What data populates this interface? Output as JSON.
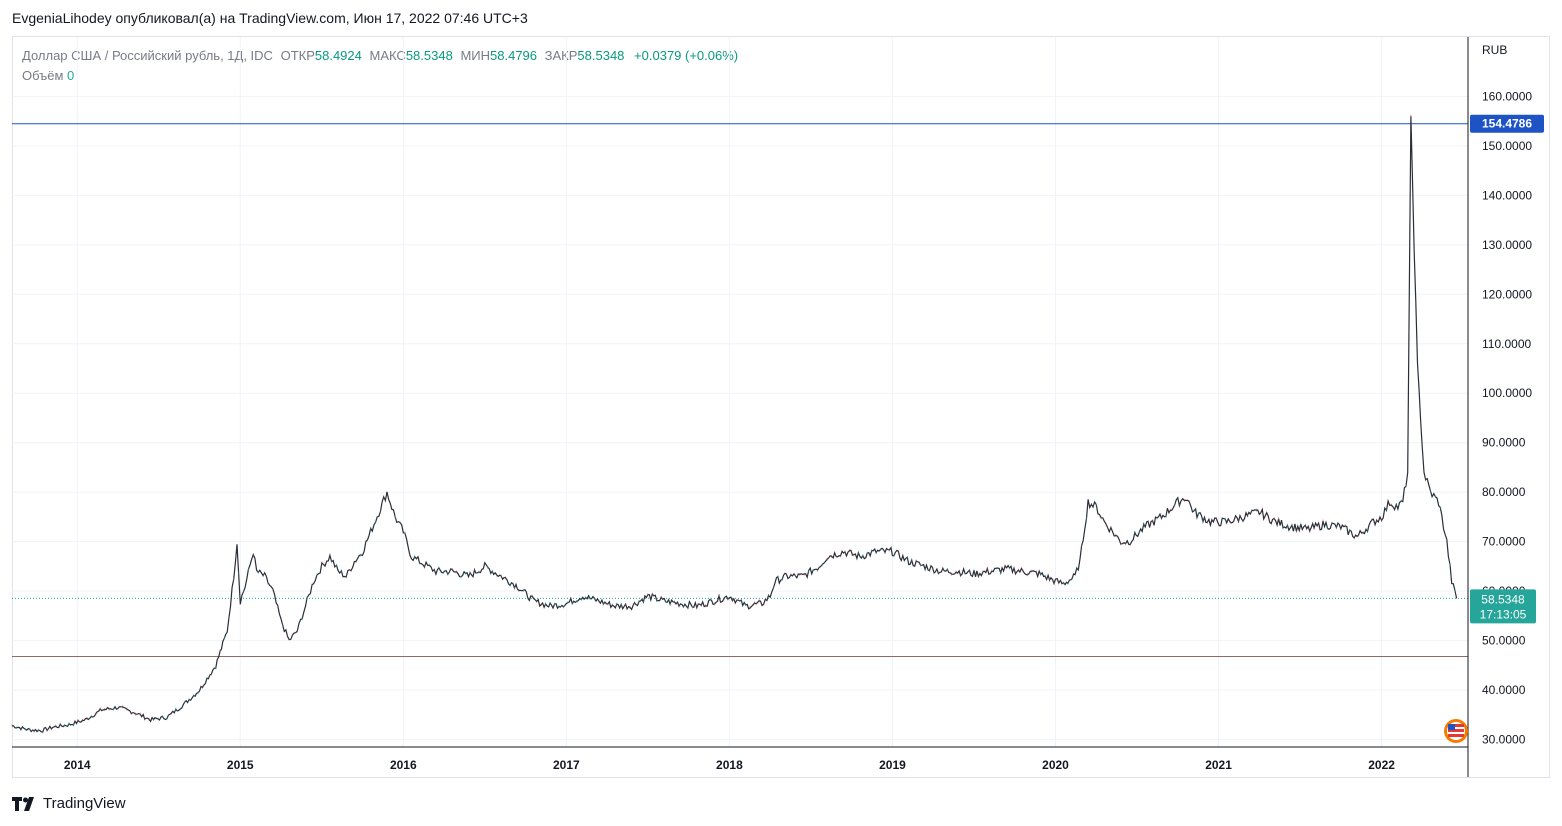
{
  "publisher_line": "EvgeniaLihodey опубликовал(а) на TradingView.com, Июн 17, 2022 07:46 UTC+3",
  "legend": {
    "symbol": "Доллар США / Российский рубль, 1Д, IDC",
    "open_label": "ОТКР",
    "open": "58.4924",
    "high_label": "МАКС",
    "high": "58.5348",
    "low_label": "МИН",
    "low": "58.4796",
    "close_label": "ЗАКР",
    "close": "58.5348",
    "change": "+0.0379 (+0.06%)",
    "volume_label": "Объём",
    "volume": "0"
  },
  "footer": {
    "brand": "TradingView"
  },
  "colors": {
    "line": "#131722",
    "up": "#26a69a",
    "down": "#ef5350",
    "hline": "#2962ff",
    "hline_low": "#b2b5be",
    "grid": "#f0f3fa",
    "price_badge": "#26a69a",
    "max_badge": "#1e53c6"
  },
  "chart_data": {
    "type": "line",
    "x_unit": "year",
    "x_ticks": [
      {
        "label": "2014",
        "x": 2014.0
      },
      {
        "label": "2015",
        "x": 2015.0
      },
      {
        "label": "2016",
        "x": 2016.0
      },
      {
        "label": "2017",
        "x": 2017.0
      },
      {
        "label": "2018",
        "x": 2018.0
      },
      {
        "label": "2019",
        "x": 2019.0
      },
      {
        "label": "2020",
        "x": 2020.0
      },
      {
        "label": "2021",
        "x": 2021.0
      },
      {
        "label": "2022",
        "x": 2022.0
      }
    ],
    "xlim": [
      2013.6,
      2022.53
    ],
    "ylim": [
      28.5,
      172
    ],
    "y_axis_label": "RUB",
    "y_ticks": [
      30,
      40,
      50,
      60,
      70,
      80,
      90,
      100,
      110,
      120,
      130,
      140,
      150,
      160
    ],
    "y_tick_labels": [
      "30.0000",
      "40.0000",
      "50.0000",
      "60.0000",
      "70.0000",
      "80.0000",
      "90.0000",
      "100.0000",
      "110.0000",
      "120.0000",
      "130.0000",
      "140.0000",
      "150.0000",
      "160.0000"
    ],
    "grid": true,
    "horizontal_lines": [
      {
        "y": 154.4786,
        "label": "154.4786",
        "style": "solid"
      },
      {
        "y": 46.8,
        "style": "solid-thin"
      }
    ],
    "last_price": {
      "y": 58.5348,
      "label": "58.5348",
      "countdown": "17:13:05"
    },
    "series": [
      {
        "x": [
          2013.6,
          2013.7,
          2013.78,
          2013.85,
          2013.95,
          2014.05,
          2014.15,
          2014.25,
          2014.35,
          2014.45,
          2014.55,
          2014.65,
          2014.75,
          2014.85,
          2014.92,
          2014.96,
          2014.98,
          2015.0,
          2015.03,
          2015.08,
          2015.1,
          2015.15,
          2015.2,
          2015.25,
          2015.3,
          2015.35,
          2015.4,
          2015.45,
          2015.5,
          2015.55,
          2015.6,
          2015.65,
          2015.7,
          2015.75,
          2015.8,
          2015.85,
          2015.9,
          2015.95,
          2016.0,
          2016.05,
          2016.1,
          2016.15,
          2016.2,
          2016.3,
          2016.4,
          2016.5,
          2016.6,
          2016.7,
          2016.8,
          2016.9,
          2017.0,
          2017.1,
          2017.2,
          2017.3,
          2017.4,
          2017.5,
          2017.6,
          2017.7,
          2017.8,
          2017.9,
          2018.0,
          2018.1,
          2018.2,
          2018.25,
          2018.28,
          2018.35,
          2018.45,
          2018.55,
          2018.6,
          2018.7,
          2018.8,
          2018.9,
          2019.0,
          2019.1,
          2019.2,
          2019.3,
          2019.4,
          2019.5,
          2019.6,
          2019.7,
          2019.8,
          2019.9,
          2020.0,
          2020.05,
          2020.12,
          2020.15,
          2020.2,
          2020.25,
          2020.3,
          2020.35,
          2020.4,
          2020.45,
          2020.55,
          2020.65,
          2020.75,
          2020.8,
          2020.85,
          2020.95,
          2021.05,
          2021.15,
          2021.25,
          2021.35,
          2021.45,
          2021.55,
          2021.65,
          2021.75,
          2021.85,
          2021.95,
          2022.0,
          2022.05,
          2022.1,
          2022.13,
          2022.16,
          2022.18,
          2022.2,
          2022.22,
          2022.24,
          2022.26,
          2022.3,
          2022.35,
          2022.4,
          2022.43,
          2022.46
        ],
        "values": [
          32.8,
          32.0,
          31.8,
          32.5,
          33.0,
          34.0,
          36.0,
          36.5,
          35.5,
          34.0,
          34.5,
          37.0,
          40.0,
          45.0,
          52.0,
          63.0,
          70.0,
          58.0,
          61.0,
          68.0,
          64.0,
          63.0,
          60.0,
          54.0,
          50.0,
          52.0,
          57.0,
          62.0,
          65.0,
          67.0,
          64.0,
          63.0,
          66.0,
          68.0,
          72.0,
          76.0,
          80.0,
          75.0,
          72.0,
          67.0,
          66.0,
          65.0,
          64.0,
          64.0,
          63.0,
          65.0,
          63.0,
          61.0,
          58.0,
          57.0,
          57.5,
          59.0,
          58.0,
          57.0,
          57.0,
          59.0,
          58.0,
          57.5,
          57.0,
          58.0,
          59.0,
          57.0,
          57.5,
          59.0,
          62.0,
          63.0,
          63.0,
          65.0,
          67.0,
          68.0,
          67.0,
          68.0,
          68.0,
          66.0,
          65.0,
          64.0,
          64.0,
          63.5,
          64.0,
          64.5,
          64.0,
          63.5,
          62.0,
          61.5,
          63.0,
          66.0,
          78.0,
          77.0,
          74.0,
          72.0,
          70.0,
          70.0,
          73.0,
          75.0,
          78.0,
          79.0,
          76.0,
          74.0,
          74.0,
          75.0,
          76.0,
          74.0,
          73.0,
          72.5,
          73.5,
          73.0,
          71.0,
          74.0,
          75.0,
          78.0,
          77.0,
          78.0,
          84.0,
          154.4786,
          130.0,
          105.0,
          95.0,
          84.0,
          80.0,
          78.0,
          70.0,
          62.0,
          58.5348
        ]
      }
    ]
  }
}
